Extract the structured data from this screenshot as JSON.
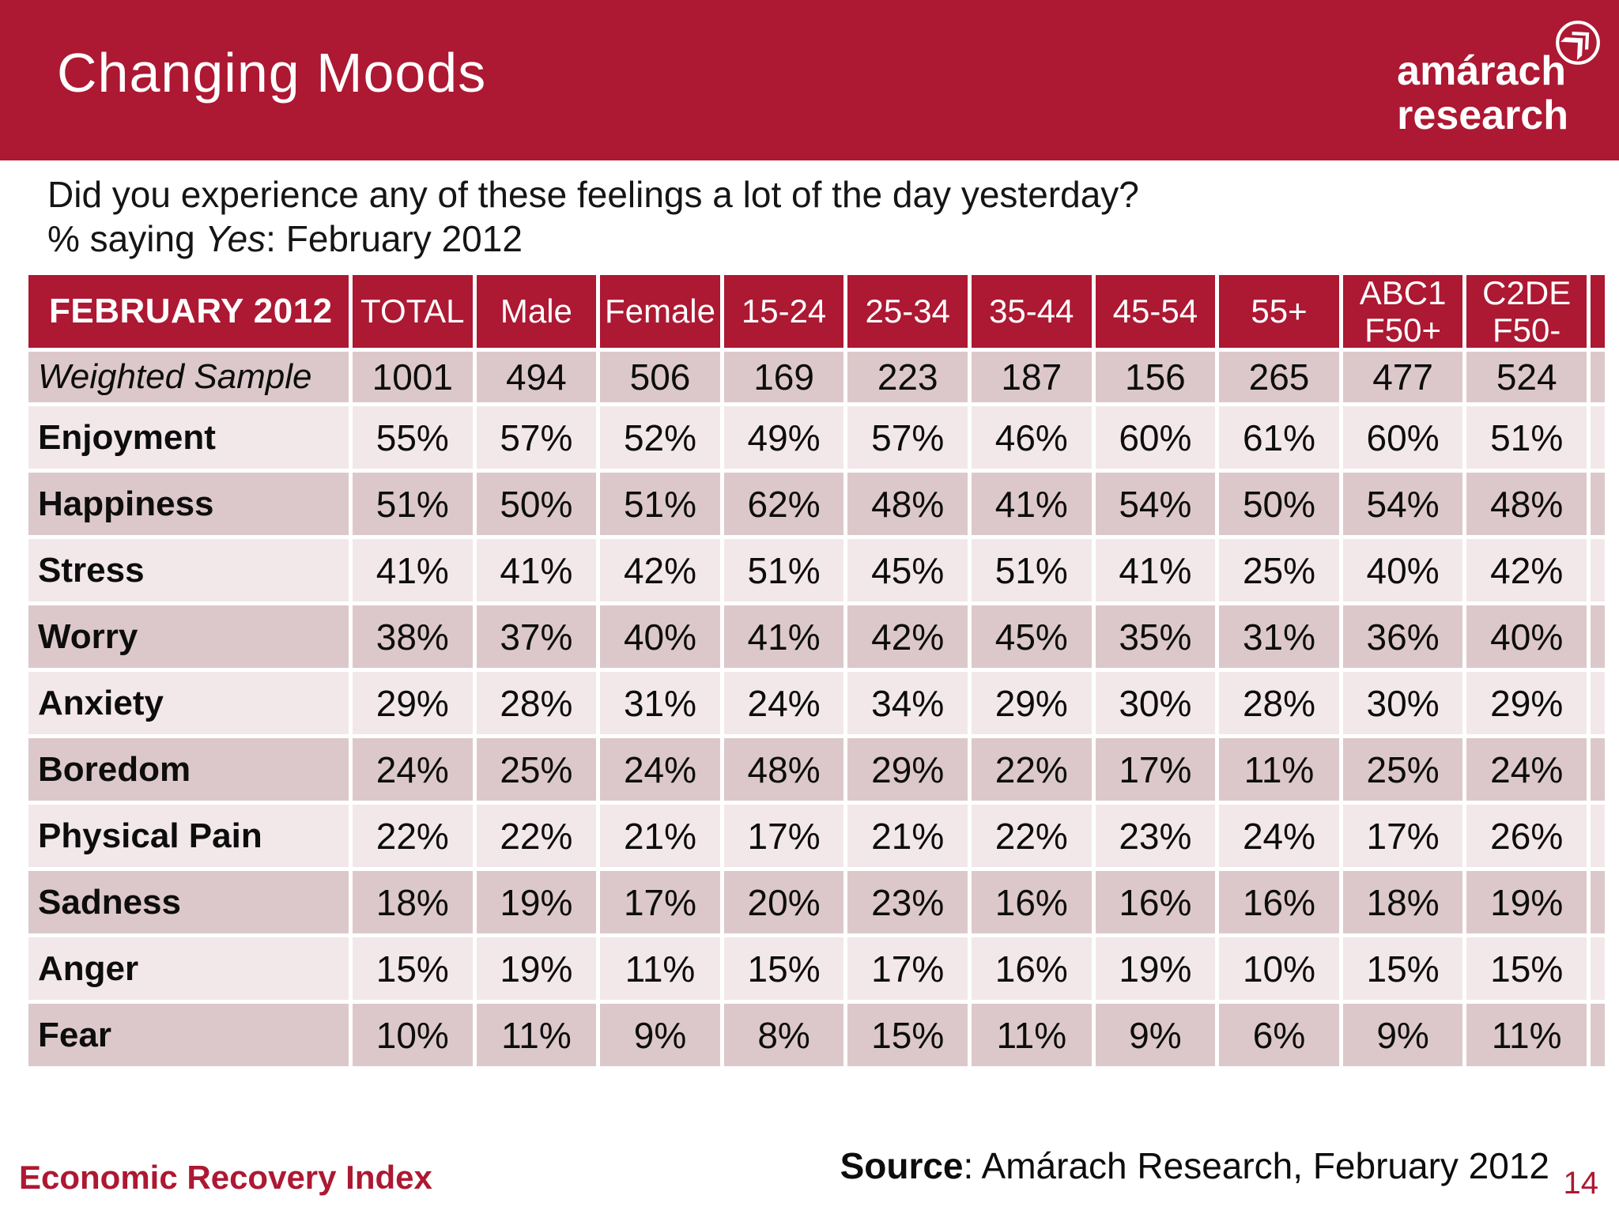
{
  "slide": {
    "title": "Changing Moods",
    "logo": {
      "line1": "amárach",
      "line2": "research",
      "icon": "double-chevron-circle-icon"
    },
    "question_line1": "Did you experience any of these feelings a lot of the day yesterday?",
    "question_line2_prefix": "% saying ",
    "question_line2_italic": "Yes",
    "question_line2_suffix": ": February 2012",
    "footer_left": "Economic Recovery Index",
    "source_label": "Source",
    "source_rest": ": Amárach Research, February 2012",
    "page_number": "14"
  },
  "colors": {
    "brand_red": "#AD1832",
    "row_dark": "#DCC8CA",
    "row_light": "#F2E8EA",
    "header_text": "#FFFFFF"
  },
  "chart_data": {
    "type": "table",
    "title": "FEBRUARY 2012",
    "columns": [
      "TOTAL",
      "Male",
      "Female",
      "15-24",
      "25-34",
      "35-44",
      "45-54",
      "55+",
      "ABC1\nF50+",
      "C2DE\nF50-"
    ],
    "rows": [
      {
        "label": "Weighted Sample",
        "style": "italic",
        "values": [
          "1001",
          "494",
          "506",
          "169",
          "223",
          "187",
          "156",
          "265",
          "477",
          "524"
        ]
      },
      {
        "label": "Enjoyment",
        "values": [
          "55%",
          "57%",
          "52%",
          "49%",
          "57%",
          "46%",
          "60%",
          "61%",
          "60%",
          "51%"
        ]
      },
      {
        "label": "Happiness",
        "values": [
          "51%",
          "50%",
          "51%",
          "62%",
          "48%",
          "41%",
          "54%",
          "50%",
          "54%",
          "48%"
        ]
      },
      {
        "label": "Stress",
        "values": [
          "41%",
          "41%",
          "42%",
          "51%",
          "45%",
          "51%",
          "41%",
          "25%",
          "40%",
          "42%"
        ]
      },
      {
        "label": "Worry",
        "values": [
          "38%",
          "37%",
          "40%",
          "41%",
          "42%",
          "45%",
          "35%",
          "31%",
          "36%",
          "40%"
        ]
      },
      {
        "label": "Anxiety",
        "values": [
          "29%",
          "28%",
          "31%",
          "24%",
          "34%",
          "29%",
          "30%",
          "28%",
          "30%",
          "29%"
        ]
      },
      {
        "label": "Boredom",
        "values": [
          "24%",
          "25%",
          "24%",
          "48%",
          "29%",
          "22%",
          "17%",
          "11%",
          "25%",
          "24%"
        ]
      },
      {
        "label": "Physical Pain",
        "values": [
          "22%",
          "22%",
          "21%",
          "17%",
          "21%",
          "22%",
          "23%",
          "24%",
          "17%",
          "26%"
        ]
      },
      {
        "label": "Sadness",
        "values": [
          "18%",
          "19%",
          "17%",
          "20%",
          "23%",
          "16%",
          "16%",
          "16%",
          "18%",
          "19%"
        ]
      },
      {
        "label": "Anger",
        "values": [
          "15%",
          "19%",
          "11%",
          "15%",
          "17%",
          "16%",
          "19%",
          "10%",
          "15%",
          "15%"
        ]
      },
      {
        "label": "Fear",
        "values": [
          "10%",
          "11%",
          "9%",
          "8%",
          "15%",
          "11%",
          "9%",
          "6%",
          "9%",
          "11%"
        ]
      }
    ]
  }
}
